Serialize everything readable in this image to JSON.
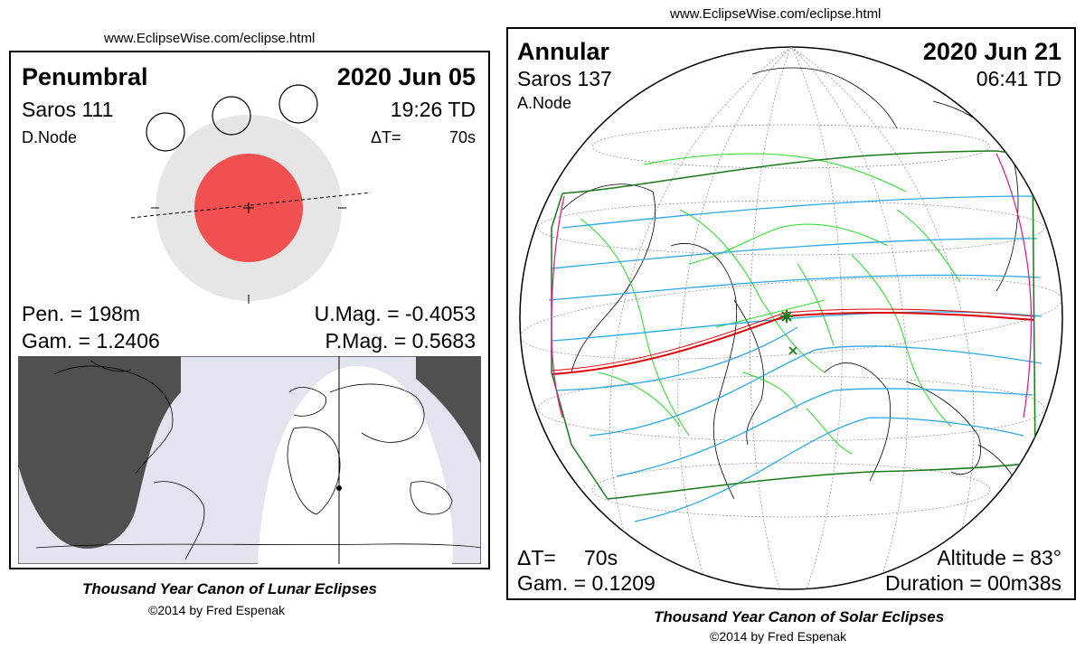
{
  "lunar": {
    "url": "www.EclipseWise.com/eclipse.html",
    "type": "Penumbral",
    "date": "2020 Jun 05",
    "saros": "Saros 111",
    "time": "19:26 TD",
    "node": "D.Node",
    "delta_t_label": "ΔT=",
    "delta_t_value": "70s",
    "pen": "Pen. = 198m",
    "gam": "Gam. = 1.2406",
    "umag": "U.Mag. = -0.4053",
    "pmag": "P.Mag. = 0.5683",
    "canon": "Thousand Year Canon of Lunar Eclipses",
    "copyright": "©2014 by Fred Espenak",
    "colors": {
      "umbra": "#f05050",
      "penumbra": "#e6e6e6",
      "night": "#505050",
      "twilight": "#e4e4ee"
    }
  },
  "solar": {
    "url": "www.EclipseWise.com/eclipse.html",
    "type": "Annular",
    "date": "2020 Jun 21",
    "saros": "Saros 137",
    "time": "06:41 TD",
    "node": "A.Node",
    "delta_t_label": "ΔT=",
    "delta_t_value": "70s",
    "gam": "Gam. = 0.1209",
    "altitude": "Altitude = 83°",
    "duration": "Duration = 00m38s",
    "canon": "Thousand Year Canon of Solar Eclipses",
    "copyright": "©2014 by Fred Espenak",
    "colors": {
      "path": "#e00000",
      "penumbral_lines": "#2aa8e8",
      "borders": "#22dd22",
      "limits": "#1a7a1a",
      "rise_set": "#e0208a"
    }
  }
}
